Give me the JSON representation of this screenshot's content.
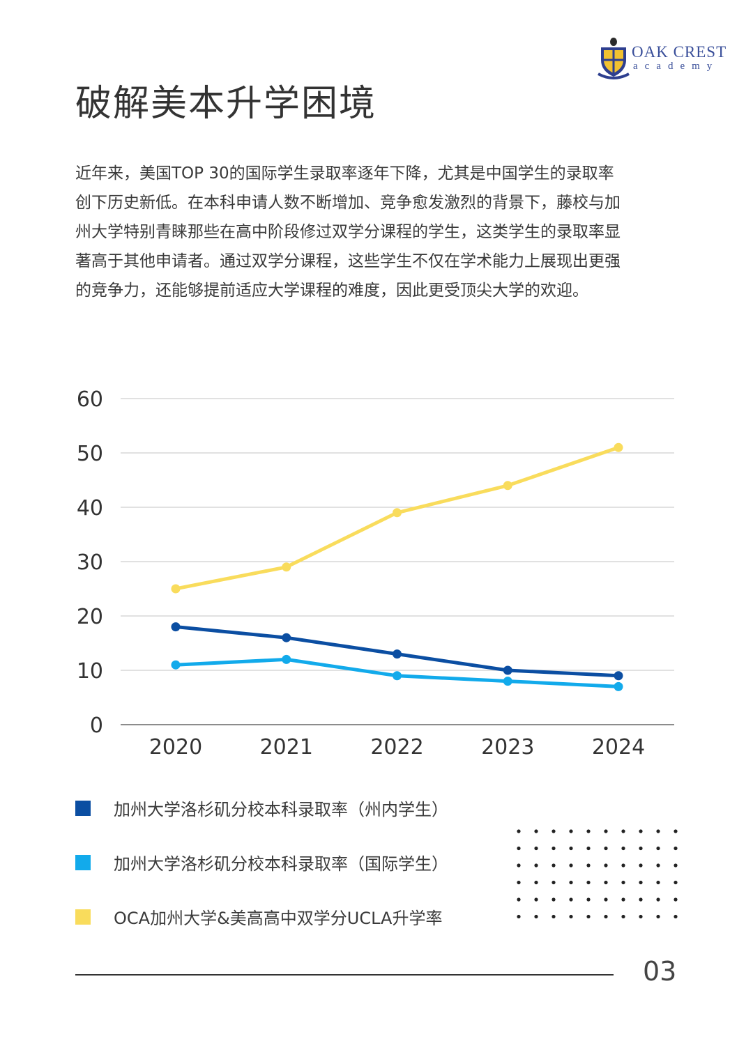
{
  "logo": {
    "line1": "OAK CREST",
    "line2": "academy",
    "colors": {
      "navy": "#2e3f8f",
      "gold": "#f2c230"
    }
  },
  "title": "破解美本升学困境",
  "intro": "近年来，美国TOP 30的国际学生录取率逐年下降，尤其是中国学生的录取率创下历史新低。在本科申请人数不断增加、竞争愈发激烈的背景下，藤校与加州大学特别青睐那些在高中阶段修过双学分课程的学生，这类学生的录取率显著高于其他申请者。通过双学分课程，这些学生不仅在学术能力上展现出更强的竞争力，还能够提前适应大学课程的难度，因此更受顶尖大学的欢迎。",
  "chart_data": {
    "type": "line",
    "title": "",
    "xlabel": "",
    "ylabel": "",
    "categories": [
      "2020",
      "2021",
      "2022",
      "2023",
      "2024"
    ],
    "ylim": [
      0,
      60
    ],
    "yticks": [
      0,
      10,
      20,
      30,
      40,
      50,
      60
    ],
    "grid": true,
    "legend_position": "bottom-left",
    "series": [
      {
        "name": "加州大学洛杉矶分校本科录取率（州内学生）",
        "values": [
          18,
          16,
          13,
          10,
          9
        ],
        "color": "#0b4ea2"
      },
      {
        "name": "加州大学洛杉矶分校本科录取率（国际学生）",
        "values": [
          11,
          12,
          9,
          8,
          7
        ],
        "color": "#12aaeb"
      },
      {
        "name": "OCA加州大学&美高高中双学分UCLA升学率",
        "values": [
          25,
          29,
          39,
          44,
          51
        ],
        "color": "#f9dc5c"
      }
    ]
  },
  "footer": {
    "page_number": "03"
  }
}
